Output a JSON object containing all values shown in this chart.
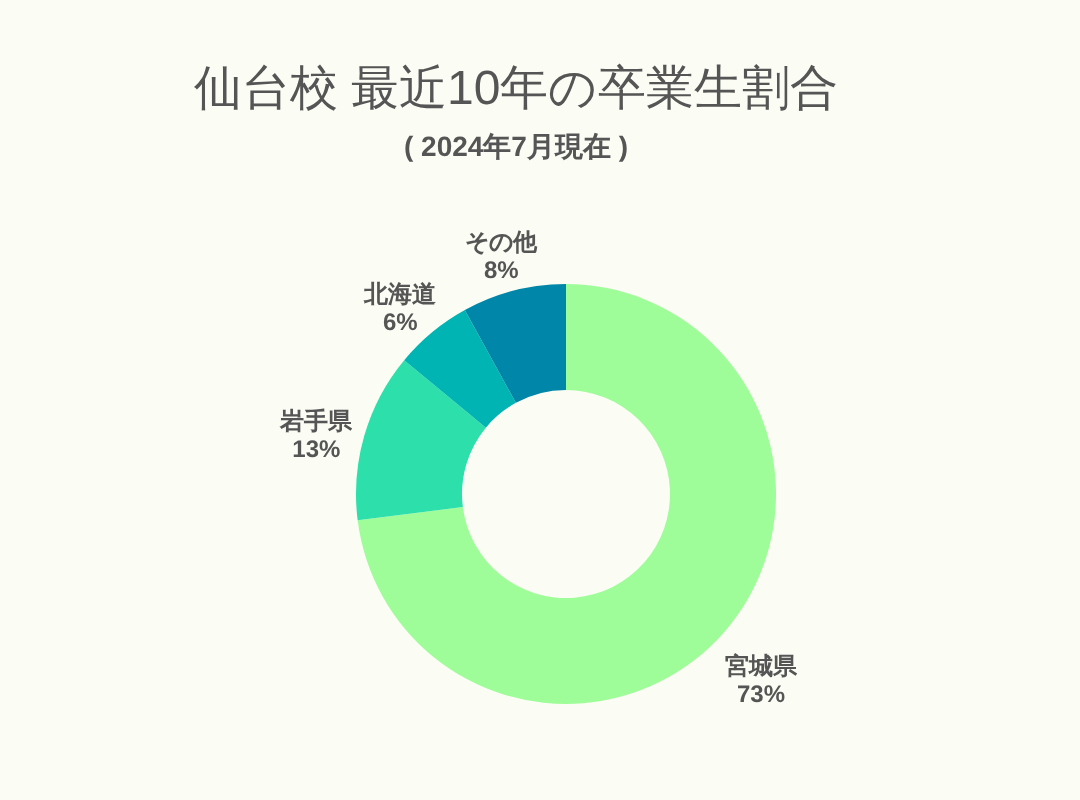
{
  "chart_data": {
    "type": "donut",
    "title": "仙台校 最近10年の卒業生割合",
    "subtitle": "( 2024年7月現在 )",
    "categories": [
      "宮城県",
      "岩手県",
      "北海道",
      "その他"
    ],
    "values": [
      73,
      13,
      6,
      8
    ],
    "colors": [
      "#9efd98",
      "#2ddfab",
      "#00b4b4",
      "#0086a8"
    ],
    "value_labels": [
      "73%",
      "13%",
      "6%",
      "8%"
    ]
  }
}
